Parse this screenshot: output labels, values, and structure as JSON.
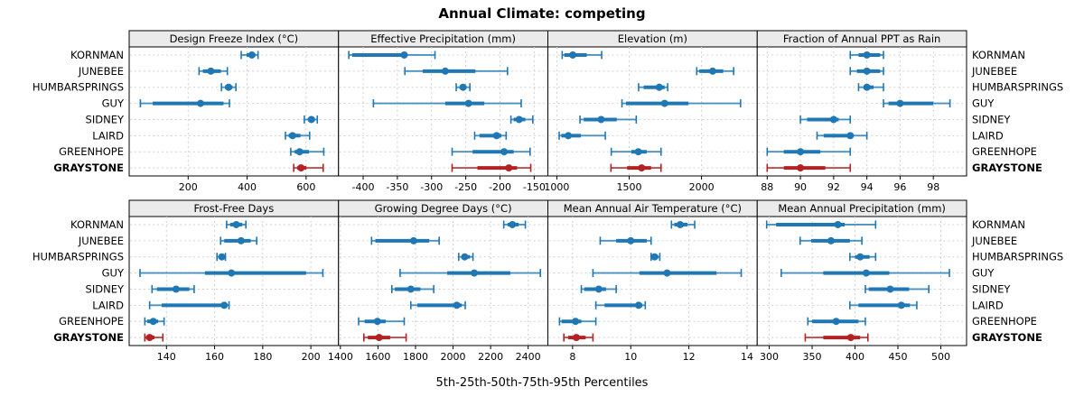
{
  "title": "Annual Climate: competing",
  "caption": "5th-25th-50th-75th-95th Percentiles",
  "sites": [
    "KORNMAN",
    "JUNEBEE",
    "HUMBARSPRINGS",
    "GUY",
    "SIDNEY",
    "LAIRD",
    "GREENHOPE",
    "GRAYSTONE"
  ],
  "highlight_site": "GRAYSTONE",
  "colors": {
    "series": "#1f77b4",
    "highlight": "#b22222",
    "grid": "#d2d2d2",
    "header_bg": "#ebebeb",
    "border": "#000000",
    "tick": "#000000",
    "text": "#000000"
  },
  "chart_data": [
    {
      "type": "scatter",
      "title": "Design Freeze Index (°C)",
      "row": 0,
      "col": 0,
      "xlim": [
        0,
        710
      ],
      "ticks": [
        200,
        400,
        600
      ],
      "percentile_labels": [
        "5th",
        "25th",
        "50th",
        "75th",
        "95th"
      ],
      "series": [
        {
          "site": "KORNMAN",
          "p": [
            380,
            398,
            416,
            428,
            437
          ]
        },
        {
          "site": "JUNEBEE",
          "p": [
            237,
            250,
            277,
            311,
            333
          ]
        },
        {
          "site": "HUMBARSPRINGS",
          "p": [
            313,
            325,
            337,
            350,
            362
          ]
        },
        {
          "site": "GUY",
          "p": [
            38,
            80,
            242,
            320,
            340
          ]
        },
        {
          "site": "SIDNEY",
          "p": [
            594,
            606,
            618,
            630,
            638
          ]
        },
        {
          "site": "LAIRD",
          "p": [
            530,
            541,
            554,
            581,
            612
          ]
        },
        {
          "site": "GREENHOPE",
          "p": [
            548,
            561,
            578,
            610,
            660
          ]
        },
        {
          "site": "GRAYSTONE",
          "p": [
            558,
            570,
            583,
            601,
            658
          ]
        }
      ]
    },
    {
      "type": "scatter",
      "title": "Effective Precipitation (mm)",
      "row": 0,
      "col": 1,
      "xlim": [
        -436,
        -130
      ],
      "ticks": [
        -400,
        -350,
        -300,
        -250,
        -200,
        -150
      ],
      "series": [
        {
          "site": "KORNMAN",
          "p": [
            -421,
            -416,
            -340,
            -336,
            -295
          ]
        },
        {
          "site": "JUNEBEE",
          "p": [
            -339,
            -313,
            -280,
            -236,
            -189
          ]
        },
        {
          "site": "HUMBARSPRINGS",
          "p": [
            -264,
            -259,
            -254,
            -249,
            -244
          ]
        },
        {
          "site": "GUY",
          "p": [
            -385,
            -280,
            -246,
            -223,
            -169
          ]
        },
        {
          "site": "SIDNEY",
          "p": [
            -184,
            -180,
            -172,
            -163,
            -152
          ]
        },
        {
          "site": "LAIRD",
          "p": [
            -237,
            -230,
            -205,
            -198,
            -191
          ]
        },
        {
          "site": "GREENHOPE",
          "p": [
            -270,
            -240,
            -194,
            -180,
            -156
          ]
        },
        {
          "site": "GRAYSTONE",
          "p": [
            -270,
            -233,
            -187,
            -175,
            -155
          ]
        }
      ]
    },
    {
      "type": "scatter",
      "title": "Elevation (m)",
      "row": 0,
      "col": 2,
      "xlim": [
        938,
        2385
      ],
      "ticks": [
        1000,
        1500,
        2000
      ],
      "series": [
        {
          "site": "KORNMAN",
          "p": [
            1037,
            1052,
            1110,
            1207,
            1310
          ]
        },
        {
          "site": "JUNEBEE",
          "p": [
            1967,
            1985,
            2077,
            2150,
            2222
          ]
        },
        {
          "site": "HUMBARSPRINGS",
          "p": [
            1565,
            1600,
            1708,
            1745,
            1766
          ]
        },
        {
          "site": "GUY",
          "p": [
            1450,
            1478,
            1745,
            1910,
            2270
          ]
        },
        {
          "site": "SIDNEY",
          "p": [
            1160,
            1186,
            1306,
            1414,
            1549
          ]
        },
        {
          "site": "LAIRD",
          "p": [
            1016,
            1031,
            1079,
            1166,
            1335
          ]
        },
        {
          "site": "GREENHOPE",
          "p": [
            1376,
            1515,
            1563,
            1621,
            1720
          ]
        },
        {
          "site": "GRAYSTONE",
          "p": [
            1374,
            1486,
            1586,
            1651,
            1720
          ]
        }
      ]
    },
    {
      "type": "scatter",
      "title": "Fraction of Annual PPT as Rain",
      "row": 0,
      "col": 3,
      "xlim": [
        87.4,
        100
      ],
      "ticks": [
        88,
        90,
        92,
        94,
        96,
        98
      ],
      "series": [
        {
          "site": "KORNMAN",
          "p": [
            93.0,
            93.5,
            94.0,
            94.8,
            95.0
          ]
        },
        {
          "site": "JUNEBEE",
          "p": [
            93.0,
            93.4,
            94.0,
            94.8,
            95.0
          ]
        },
        {
          "site": "HUMBARSPRINGS",
          "p": [
            93.5,
            93.8,
            94.0,
            94.4,
            95.0
          ]
        },
        {
          "site": "GUY",
          "p": [
            95.0,
            95.3,
            96.0,
            98.0,
            99.0
          ]
        },
        {
          "site": "SIDNEY",
          "p": [
            90.0,
            90.4,
            92.0,
            92.3,
            93.0
          ]
        },
        {
          "site": "LAIRD",
          "p": [
            91.0,
            91.4,
            93.0,
            93.2,
            94.0
          ]
        },
        {
          "site": "GREENHOPE",
          "p": [
            88.0,
            89.0,
            90.0,
            91.2,
            93.0
          ]
        },
        {
          "site": "GRAYSTONE",
          "p": [
            88.0,
            89.0,
            90.0,
            91.5,
            93.0
          ]
        }
      ]
    },
    {
      "type": "scatter",
      "title": "Frost-Free Days",
      "row": 1,
      "col": 0,
      "xlim": [
        124.5,
        211.5
      ],
      "ticks": [
        140,
        160,
        180,
        200
      ],
      "series": [
        {
          "site": "KORNMAN",
          "p": [
            165,
            166.5,
            169,
            171.5,
            173
          ]
        },
        {
          "site": "JUNEBEE",
          "p": [
            162.5,
            164,
            171,
            175,
            177.5
          ]
        },
        {
          "site": "HUMBARSPRINGS",
          "p": [
            161,
            162,
            163,
            163.5,
            164.5
          ]
        },
        {
          "site": "GUY",
          "p": [
            129,
            156,
            167,
            198,
            205
          ]
        },
        {
          "site": "SIDNEY",
          "p": [
            134,
            136,
            144,
            149.5,
            151.5
          ]
        },
        {
          "site": "LAIRD",
          "p": [
            133,
            138,
            164,
            165,
            166
          ]
        },
        {
          "site": "GREENHOPE",
          "p": [
            131,
            132,
            134.5,
            136.5,
            139
          ]
        },
        {
          "site": "GRAYSTONE",
          "p": [
            131,
            131.5,
            133,
            135,
            138.5
          ]
        }
      ]
    },
    {
      "type": "scatter",
      "title": "Growing Degree Days (°C)",
      "row": 1,
      "col": 1,
      "xlim": [
        1390,
        2505
      ],
      "ticks": [
        1400,
        1600,
        1800,
        2000,
        2200,
        2400
      ],
      "series": [
        {
          "site": "KORNMAN",
          "p": [
            2270,
            2290,
            2316,
            2350,
            2385
          ]
        },
        {
          "site": "JUNEBEE",
          "p": [
            1566,
            1586,
            1790,
            1873,
            1926
          ]
        },
        {
          "site": "HUMBARSPRINGS",
          "p": [
            2030,
            2046,
            2062,
            2090,
            2106
          ]
        },
        {
          "site": "GUY",
          "p": [
            1718,
            1969,
            2113,
            2305,
            2465
          ]
        },
        {
          "site": "SIDNEY",
          "p": [
            1674,
            1690,
            1775,
            1826,
            1897
          ]
        },
        {
          "site": "LAIRD",
          "p": [
            1775,
            1810,
            2020,
            2046,
            2065
          ]
        },
        {
          "site": "GREENHOPE",
          "p": [
            1497,
            1529,
            1597,
            1641,
            1740
          ]
        },
        {
          "site": "GRAYSTONE",
          "p": [
            1525,
            1546,
            1606,
            1665,
            1750
          ]
        }
      ]
    },
    {
      "type": "scatter",
      "title": "Mean Annual Air Temperature (°C)",
      "row": 1,
      "col": 2,
      "xlim": [
        7.15,
        14.35
      ],
      "ticks": [
        8,
        10,
        12,
        14
      ],
      "series": [
        {
          "site": "KORNMAN",
          "p": [
            11.4,
            11.5,
            11.7,
            11.95,
            12.2
          ]
        },
        {
          "site": "JUNEBEE",
          "p": [
            8.95,
            9.5,
            10.0,
            10.55,
            10.7
          ]
        },
        {
          "site": "HUMBARSPRINGS",
          "p": [
            10.7,
            10.75,
            10.82,
            10.95,
            11.0
          ]
        },
        {
          "site": "GUY",
          "p": [
            8.7,
            10.3,
            11.25,
            12.95,
            13.8
          ]
        },
        {
          "site": "SIDNEY",
          "p": [
            8.3,
            8.4,
            8.9,
            9.15,
            9.5
          ]
        },
        {
          "site": "LAIRD",
          "p": [
            8.8,
            9.1,
            10.27,
            10.4,
            10.5
          ]
        },
        {
          "site": "GREENHOPE",
          "p": [
            7.55,
            7.62,
            8.1,
            8.3,
            8.8
          ]
        },
        {
          "site": "GRAYSTONE",
          "p": [
            7.7,
            7.85,
            8.13,
            8.45,
            8.7
          ]
        }
      ]
    },
    {
      "type": "scatter",
      "title": "Mean Annual Precipitation (mm)",
      "row": 1,
      "col": 3,
      "xlim": [
        286,
        530
      ],
      "ticks": [
        300,
        350,
        400,
        450,
        500
      ],
      "series": [
        {
          "site": "KORNMAN",
          "p": [
            297,
            308,
            380,
            388,
            424
          ]
        },
        {
          "site": "JUNEBEE",
          "p": [
            336,
            349,
            372,
            394,
            408
          ]
        },
        {
          "site": "HUMBARSPRINGS",
          "p": [
            394,
            400,
            406,
            417,
            424
          ]
        },
        {
          "site": "GUY",
          "p": [
            314,
            363,
            413,
            440,
            510
          ]
        },
        {
          "site": "SIDNEY",
          "p": [
            412,
            416,
            441,
            463,
            486
          ]
        },
        {
          "site": "LAIRD",
          "p": [
            394,
            404,
            454,
            464,
            472
          ]
        },
        {
          "site": "GREENHOPE",
          "p": [
            345,
            350,
            378,
            404,
            412
          ]
        },
        {
          "site": "GRAYSTONE",
          "p": [
            342,
            363,
            395,
            406,
            415
          ]
        }
      ]
    }
  ]
}
